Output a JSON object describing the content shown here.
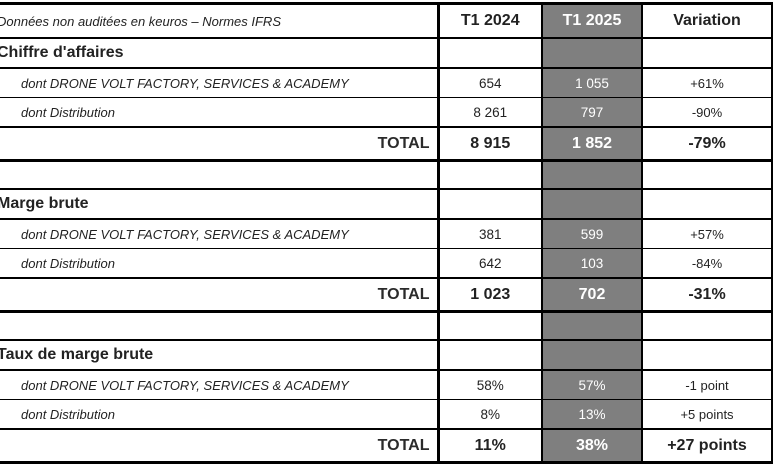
{
  "table": {
    "meta_label": "Données non auditées en keuros – Normes IFRS",
    "columns": [
      "T1 2024",
      "T1 2025",
      "Variation"
    ],
    "total_label": "TOTAL",
    "sections": [
      {
        "title": "Chiffre d'affaires",
        "rows": [
          {
            "label": "dont DRONE VOLT FACTORY, SERVICES & ACADEMY",
            "t1_2024": "654",
            "t1_2025": "1 055",
            "variation": "+61%"
          },
          {
            "label": "dont Distribution",
            "t1_2024": "8 261",
            "t1_2025": "797",
            "variation": "-90%"
          }
        ],
        "total": {
          "t1_2024": "8 915",
          "t1_2025": "1 852",
          "variation": "-79%"
        }
      },
      {
        "title": "Marge brute",
        "rows": [
          {
            "label": "dont DRONE VOLT FACTORY, SERVICES & ACADEMY",
            "t1_2024": "381",
            "t1_2025": "599",
            "variation": "+57%"
          },
          {
            "label": "dont Distribution",
            "t1_2024": "642",
            "t1_2025": "103",
            "variation": "-84%"
          }
        ],
        "total": {
          "t1_2024": "1 023",
          "t1_2025": "702",
          "variation": "-31%"
        }
      },
      {
        "title": "Taux de marge brute",
        "rows": [
          {
            "label": "dont DRONE VOLT FACTORY, SERVICES & ACADEMY",
            "t1_2024": "58%",
            "t1_2025": "57%",
            "variation": "-1 point"
          },
          {
            "label": "dont Distribution",
            "t1_2024": "8%",
            "t1_2025": "13%",
            "variation": "+5 points"
          }
        ],
        "total": {
          "t1_2024": "11%",
          "t1_2025": "38%",
          "variation": "+27 points"
        }
      }
    ],
    "colors": {
      "highlight_column_bg": "#7f7f7f",
      "highlight_column_text": "#ffffff",
      "border": "#000000",
      "text": "#222222"
    }
  }
}
